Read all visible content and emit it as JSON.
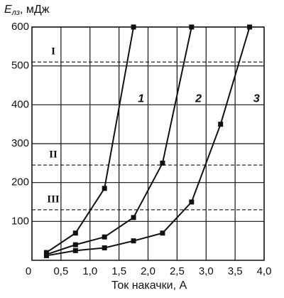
{
  "chart_data": {
    "type": "line",
    "y_label_symbol": "E",
    "y_label_subscript": "лз",
    "y_label_unit": ", мДж",
    "x_label": "Ток накачки, А",
    "xlim": [
      0,
      4
    ],
    "ylim": [
      0,
      600
    ],
    "xticks": [
      0,
      {
        "value": 0.5,
        "label": "0,5"
      },
      {
        "value": 1,
        "label": "1,0"
      },
      {
        "value": 1.5,
        "label": "1,5"
      },
      {
        "value": 2,
        "label": "2,0"
      },
      {
        "value": 2.5,
        "label": "2,5"
      },
      {
        "value": 3,
        "label": "3,0"
      },
      {
        "value": 3.5,
        "label": "3,5"
      },
      {
        "value": 4,
        "label": "4,0"
      }
    ],
    "yticks": [
      100,
      200,
      300,
      400,
      500,
      600
    ],
    "grid": true,
    "reference_lines": [
      {
        "label": "I",
        "value": 510
      },
      {
        "label": "II",
        "value": 245
      },
      {
        "label": "III",
        "value": 130
      }
    ],
    "series": [
      {
        "name": "1",
        "color": "#111111",
        "x": [
          0.25,
          0.75,
          1.25,
          1.75
        ],
        "values": [
          20,
          70,
          185,
          600
        ]
      },
      {
        "name": "2",
        "color": "#111111",
        "x": [
          0.25,
          0.75,
          1.25,
          1.75,
          2.25,
          2.75
        ],
        "values": [
          15,
          40,
          60,
          110,
          250,
          600
        ]
      },
      {
        "name": "3",
        "color": "#111111",
        "x": [
          0.25,
          0.75,
          1.25,
          1.75,
          2.25,
          2.75,
          3.25,
          3.75
        ],
        "values": [
          12,
          25,
          32,
          50,
          70,
          150,
          350,
          600
        ]
      }
    ]
  }
}
